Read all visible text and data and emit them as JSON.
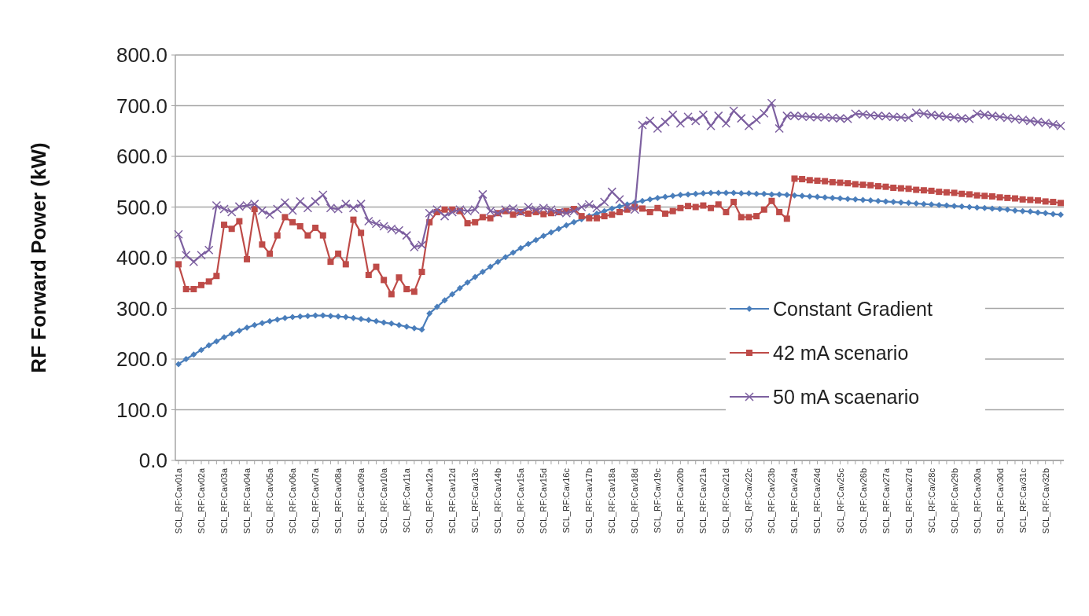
{
  "chart_data": {
    "type": "line",
    "ylabel": "RF Forward Power (kW)",
    "categories": [
      "SCL_RF:Cav01a",
      null,
      null,
      "SCL_RF:Cav02a",
      null,
      null,
      "SCL_RF:Cav03a",
      null,
      null,
      "SCL_RF:Cav04a",
      null,
      null,
      "SCL_RF:Cav05a",
      null,
      null,
      "SCL_RF:Cav06a",
      null,
      null,
      "SCL_RF:Cav07a",
      null,
      null,
      "SCL_RF:Cav08a",
      null,
      null,
      "SCL_RF:Cav09a",
      null,
      null,
      "SCL_RF:Cav10a",
      null,
      null,
      "SCL_RF:Cav11a",
      null,
      null,
      "SCL_RF:Cav12a",
      null,
      null,
      "SCL_RF:Cav12d",
      null,
      null,
      "SCL_RF:Cav13c",
      null,
      null,
      "SCL_RF:Cav14b",
      null,
      null,
      "SCL_RF:Cav15a",
      null,
      null,
      "SCL_RF:Cav15d",
      null,
      null,
      "SCL_RF:Cav16c",
      null,
      null,
      "SCL_RF:Cav17b",
      null,
      null,
      "SCL_RF:Cav18a",
      null,
      null,
      "SCL_RF:Cav18d",
      null,
      null,
      "SCL_RF:Cav19c",
      null,
      null,
      "SCL_RF:Cav20b",
      null,
      null,
      "SCL_RF:Cav21a",
      null,
      null,
      "SCL_RF:Cav21d",
      null,
      null,
      "SCL_RF:Cav22c",
      null,
      null,
      "SCL_RF:Cav23b",
      null,
      null,
      "SCL_RF:Cav24a",
      null,
      null,
      "SCL_RF:Cav24d",
      null,
      null,
      "SCL_RF:Cav25c",
      null,
      null,
      "SCL_RF:Cav26b",
      null,
      null,
      "SCL_RF:Cav27a",
      null,
      null,
      "SCL_RF:Cav27d",
      null,
      null,
      "SCL_RF:Cav28c",
      null,
      null,
      "SCL_RF:Cav29b",
      null,
      null,
      "SCL_RF:Cav30a",
      null,
      null,
      "SCL_RF:Cav30d",
      null,
      null,
      "SCL_RF:Cav31c",
      null,
      null,
      "SCL_RF:Cav32b",
      null,
      null
    ],
    "series": [
      {
        "name": "Constant Gradient",
        "color": "#4a7ebb",
        "marker": "diamond",
        "values": [
          190,
          200,
          209,
          218,
          227,
          235,
          243,
          250,
          256,
          262,
          267,
          271,
          275,
          278,
          281,
          283,
          284,
          285,
          286,
          286,
          285,
          284,
          283,
          281,
          279,
          277,
          275,
          272,
          270,
          267,
          264,
          261,
          258,
          290,
          303,
          316,
          328,
          340,
          351,
          362,
          372,
          382,
          392,
          401,
          410,
          419,
          427,
          435,
          443,
          450,
          457,
          464,
          470,
          476,
          482,
          487,
          492,
          497,
          501,
          505,
          509,
          512,
          515,
          518,
          520,
          522,
          524,
          525,
          526,
          527,
          528,
          528,
          528,
          528,
          527,
          527,
          526,
          526,
          525,
          525,
          524,
          523,
          522,
          521,
          520,
          519,
          518,
          517,
          516,
          515,
          514,
          513,
          512,
          511,
          510,
          509,
          508,
          507,
          506,
          505,
          504,
          503,
          502,
          501,
          500,
          499,
          498,
          497,
          496,
          495,
          493,
          492,
          491,
          489,
          488,
          486,
          485
        ]
      },
      {
        "name": "42 mA scenario",
        "color": "#be4b48",
        "marker": "square",
        "values": [
          387,
          338,
          338,
          346,
          353,
          364,
          465,
          457,
          472,
          397,
          496,
          426,
          408,
          444,
          480,
          470,
          462,
          444,
          459,
          444,
          392,
          408,
          387,
          475,
          449,
          366,
          382,
          356,
          328,
          361,
          338,
          333,
          372,
          470,
          490,
          495,
          495,
          492,
          468,
          470,
          480,
          478,
          488,
          492,
          485,
          490,
          487,
          490,
          486,
          488,
          490,
          492,
          496,
          482,
          478,
          478,
          482,
          485,
          490,
          495,
          500,
          497,
          490,
          498,
          487,
          492,
          498,
          502,
          500,
          503,
          498,
          505,
          490,
          510,
          480,
          480,
          482,
          495,
          512,
          490,
          477,
          556,
          555,
          553,
          552,
          551,
          549,
          548,
          547,
          545,
          544,
          543,
          541,
          540,
          538,
          537,
          536,
          534,
          533,
          532,
          530,
          529,
          528,
          526,
          525,
          523,
          522,
          521,
          519,
          518,
          517,
          515,
          514,
          513,
          511,
          510,
          508
        ]
      },
      {
        "name": "50 mA scaenario",
        "color": "#7d60a0",
        "marker": "cross",
        "values": [
          446,
          405,
          392,
          405,
          415,
          503,
          496,
          490,
          501,
          503,
          506,
          493,
          485,
          496,
          509,
          493,
          511,
          498,
          511,
          524,
          498,
          496,
          506,
          498,
          506,
          472,
          467,
          462,
          457,
          454,
          444,
          421,
          425,
          488,
          495,
          482,
          490,
          495,
          492,
          495,
          525,
          492,
          488,
          495,
          497,
          490,
          500,
          495,
          498,
          495,
          490,
          488,
          492,
          500,
          505,
          498,
          510,
          530,
          515,
          500,
          495,
          662,
          670,
          655,
          668,
          682,
          665,
          678,
          670,
          682,
          660,
          680,
          665,
          690,
          675,
          660,
          672,
          685,
          705,
          655,
          680,
          680,
          679,
          678,
          677,
          677,
          676,
          675,
          674,
          684,
          683,
          681,
          680,
          679,
          678,
          677,
          676,
          686,
          684,
          682,
          680,
          678,
          677,
          675,
          674,
          684,
          682,
          680,
          678,
          676,
          674,
          672,
          670,
          668,
          666,
          663,
          660
        ]
      }
    ],
    "ylim": [
      0,
      800
    ],
    "yticks": [
      {
        "value": 0,
        "label": "0.0"
      },
      {
        "value": 100,
        "label": "100.0"
      },
      {
        "value": 200,
        "label": "200.0"
      },
      {
        "value": 300,
        "label": "300.0"
      },
      {
        "value": 400,
        "label": "400.0"
      },
      {
        "value": 500,
        "label": "500.0"
      },
      {
        "value": 600,
        "label": "600.0"
      },
      {
        "value": 700,
        "label": "700.0"
      },
      {
        "value": 800,
        "label": "800.0"
      }
    ],
    "grid": "y",
    "legend": "right"
  }
}
